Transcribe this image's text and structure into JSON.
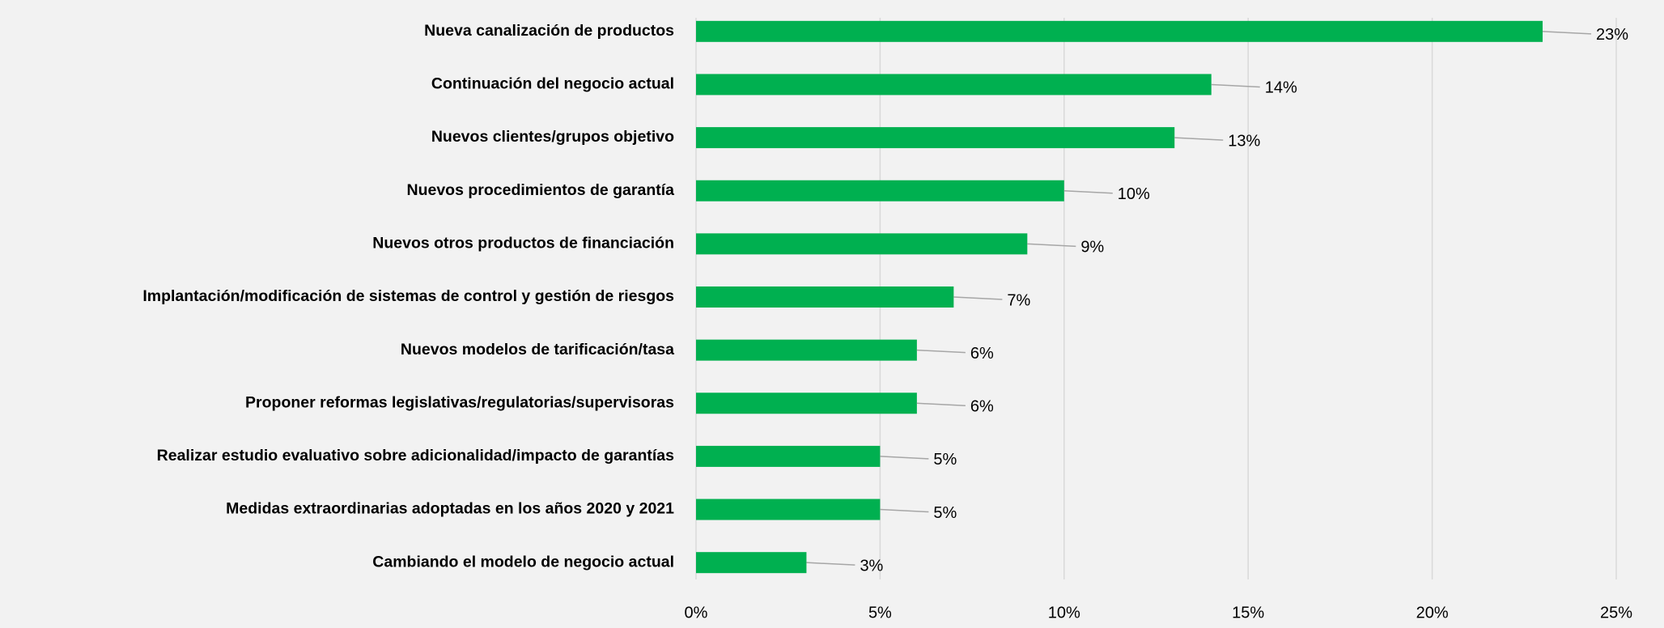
{
  "chart_data": {
    "type": "bar",
    "orientation": "horizontal",
    "categories": [
      "Nueva canalización de productos",
      "Continuación del negocio actual",
      "Nuevos clientes/grupos objetivo",
      "Nuevos procedimientos de garantía",
      "Nuevos otros productos de financiación",
      "Implantación/modificación de sistemas de control y gestión de riesgos",
      "Nuevos modelos de tarificación/tasa",
      "Proponer reformas legislativas/regulatorias/supervisoras",
      "Realizar estudio evaluativo sobre adicionalidad/impacto de garantías",
      "Medidas extraordinarias adoptadas en los años 2020 y 2021",
      "Cambiando el modelo de negocio actual"
    ],
    "values": [
      23,
      14,
      13,
      10,
      9,
      7,
      6,
      6,
      5,
      5,
      3
    ],
    "value_labels": [
      "23%",
      "14%",
      "13%",
      "10%",
      "9%",
      "7%",
      "6%",
      "6%",
      "5%",
      "5%",
      "3%"
    ],
    "color": "#00b050",
    "xlim": [
      0,
      25
    ],
    "xticks": [
      {
        "value": 0,
        "label": "0%"
      },
      {
        "value": 5,
        "label": "5%"
      },
      {
        "value": 10,
        "label": "10%"
      },
      {
        "value": 15,
        "label": "15%"
      },
      {
        "value": 20,
        "label": "20%"
      },
      {
        "value": 25,
        "label": "25%"
      }
    ],
    "grid": true
  }
}
